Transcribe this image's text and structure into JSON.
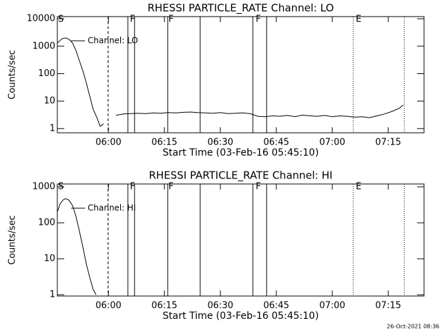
{
  "chart_data": [
    {
      "type": "line",
      "title": "RHESSI PARTICLE_RATE Channel: LO",
      "xlabel": "Start Time (03-Feb-16 05:45:10)",
      "ylabel": "Counts/sec",
      "log_y": true,
      "xlim": [
        346.3,
        444.6
      ],
      "ylim": [
        0.7,
        12000
      ],
      "xticks": [
        {
          "value": 360,
          "label": "06:00"
        },
        {
          "value": 375,
          "label": "06:15"
        },
        {
          "value": 390,
          "label": "06:30"
        },
        {
          "value": 405,
          "label": "06:45"
        },
        {
          "value": 420,
          "label": "07:00"
        },
        {
          "value": 435,
          "label": "07:15"
        }
      ],
      "yticks": [
        1,
        10,
        100,
        1000,
        10000
      ],
      "event_lines": [
        {
          "x": 359.9,
          "style": "dashed"
        },
        {
          "x": 365.2,
          "style": "solid"
        },
        {
          "x": 367.0,
          "style": "solid"
        },
        {
          "x": 375.9,
          "style": "solid"
        },
        {
          "x": 384.6,
          "style": "solid"
        },
        {
          "x": 398.7,
          "style": "solid"
        },
        {
          "x": 402.4,
          "style": "solid"
        },
        {
          "x": 425.6,
          "style": "dotted"
        },
        {
          "x": 439.3,
          "style": "dotted"
        }
      ],
      "flags": [
        {
          "x": 346.3,
          "label": "S"
        },
        {
          "x": 365.6,
          "label": "F"
        },
        {
          "x": 375.9,
          "label": "F"
        },
        {
          "x": 399.3,
          "label": "F"
        },
        {
          "x": 426.1,
          "label": "E"
        }
      ],
      "series": [
        {
          "name": "Channel: LO",
          "color": "#000000",
          "x": [
            346.3,
            347.6,
            348.5,
            349.4,
            350.4,
            351.3,
            352.2,
            353.2,
            354.1,
            355.0,
            355.9,
            356.9,
            357.8,
            358.7,
            359.6,
            362,
            364,
            366,
            368,
            370,
            372,
            374,
            376,
            378,
            380,
            382,
            384,
            386,
            388,
            390,
            392,
            394,
            396,
            398,
            400,
            402,
            404,
            406,
            408,
            410,
            412,
            414,
            416,
            418,
            420,
            422,
            424,
            426,
            428,
            430,
            432,
            434,
            436,
            438,
            439
          ],
          "values": [
            1300,
            1900,
            2000,
            1800,
            1300,
            700,
            300,
            120,
            45,
            15,
            5,
            2.5,
            1.2,
            1.5,
            null,
            3.0,
            3.4,
            3.5,
            3.6,
            3.5,
            3.7,
            3.6,
            3.8,
            3.7,
            3.9,
            4.0,
            3.8,
            3.7,
            3.6,
            3.8,
            3.5,
            3.6,
            3.7,
            3.5,
            2.8,
            2.7,
            2.9,
            2.8,
            3.0,
            2.7,
            3.1,
            2.9,
            2.8,
            3.0,
            2.7,
            2.9,
            2.8,
            2.6,
            2.7,
            2.5,
            2.9,
            3.4,
            4.2,
            5.5,
            7.2
          ]
        }
      ]
    },
    {
      "type": "line",
      "title": "RHESSI PARTICLE_RATE Channel: HI",
      "xlabel": "Start Time (03-Feb-16 05:45:10)",
      "ylabel": "Counts/sec",
      "log_y": true,
      "xlim": [
        346.3,
        444.6
      ],
      "ylim": [
        0.92,
        1200
      ],
      "xticks": [
        {
          "value": 360,
          "label": "06:00"
        },
        {
          "value": 375,
          "label": "06:15"
        },
        {
          "value": 390,
          "label": "06:30"
        },
        {
          "value": 405,
          "label": "06:45"
        },
        {
          "value": 420,
          "label": "07:00"
        },
        {
          "value": 435,
          "label": "07:15"
        }
      ],
      "yticks": [
        1,
        10,
        100,
        1000
      ],
      "event_lines": [
        {
          "x": 359.9,
          "style": "dashed"
        },
        {
          "x": 365.2,
          "style": "solid"
        },
        {
          "x": 367.0,
          "style": "solid"
        },
        {
          "x": 375.9,
          "style": "solid"
        },
        {
          "x": 384.6,
          "style": "solid"
        },
        {
          "x": 398.7,
          "style": "solid"
        },
        {
          "x": 402.4,
          "style": "solid"
        },
        {
          "x": 425.6,
          "style": "dotted"
        },
        {
          "x": 439.3,
          "style": "dotted"
        }
      ],
      "flags": [
        {
          "x": 346.3,
          "label": "S"
        },
        {
          "x": 365.6,
          "label": "F"
        },
        {
          "x": 375.9,
          "label": "F"
        },
        {
          "x": 399.3,
          "label": "F"
        },
        {
          "x": 426.1,
          "label": "E"
        }
      ],
      "series": [
        {
          "name": "Channel: HI",
          "color": "#000000",
          "x": [
            346.3,
            347.0,
            347.8,
            348.5,
            349.4,
            350.4,
            351.3,
            352.2,
            353.2,
            354.1,
            355.0,
            355.9,
            356.7
          ],
          "values": [
            200,
            330,
            430,
            470,
            430,
            300,
            150,
            60,
            20,
            7,
            3,
            1.4,
            1.0
          ]
        }
      ]
    }
  ],
  "footer": "26-Oct-2021 08:36"
}
